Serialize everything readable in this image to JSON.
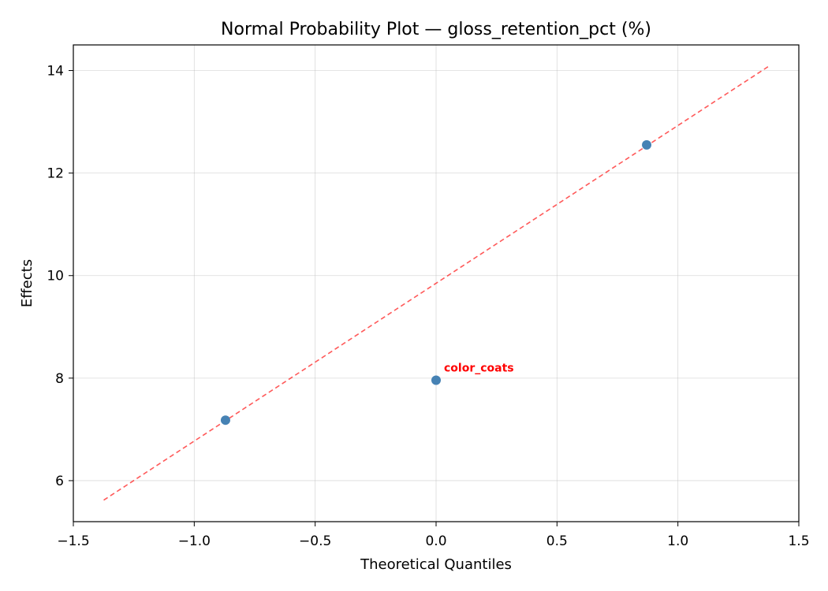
{
  "chart_data": {
    "type": "scatter",
    "title": "Normal Probability Plot — gloss_retention_pct (%)",
    "xlabel": "Theoretical Quantiles",
    "ylabel": "Effects",
    "xlim": [
      -1.5,
      1.5
    ],
    "ylim": [
      5.2,
      14.5
    ],
    "xticks": [
      -1.5,
      -1.0,
      -0.5,
      0.0,
      0.5,
      1.0,
      1.5
    ],
    "xtick_labels": [
      "−1.5",
      "−1.0",
      "−0.5",
      "0.0",
      "0.5",
      "1.0",
      "1.5"
    ],
    "yticks": [
      6,
      8,
      10,
      12,
      14
    ],
    "ytick_labels": [
      "6",
      "8",
      "10",
      "12",
      "14"
    ],
    "grid": true,
    "points": [
      {
        "x": -0.8708,
        "y": 7.18,
        "label": ""
      },
      {
        "x": 0.0,
        "y": 7.96,
        "label": "color_coats"
      },
      {
        "x": 0.8708,
        "y": 12.55,
        "label": ""
      }
    ],
    "reference_line": {
      "x": [
        -1.3744,
        1.3744
      ],
      "y": [
        5.62,
        14.08
      ],
      "color": "#ff0000",
      "style": "dashed"
    },
    "colors": {
      "points": "#4682b4",
      "annotation": "#ff0000",
      "reference_line": "#ff0000"
    }
  }
}
